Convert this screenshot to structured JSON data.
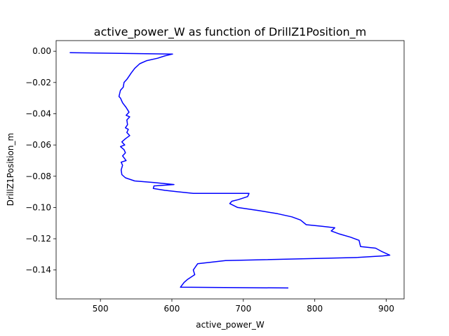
{
  "chart_data": {
    "type": "line",
    "title": "active_power_W as function of DrillZ1Position_m",
    "xlabel": "active_power_W",
    "ylabel": "DrillZ1Position_m",
    "xlim": [
      438,
      925
    ],
    "ylim": [
      -0.1585,
      0.0068
    ],
    "xticks": [
      500,
      600,
      700,
      800,
      900
    ],
    "xtick_labels": [
      "500",
      "600",
      "700",
      "800",
      "900"
    ],
    "yticks": [
      0.0,
      -0.02,
      -0.04,
      -0.06,
      -0.08,
      -0.1,
      -0.12,
      -0.14
    ],
    "ytick_labels": [
      "0.00",
      "−0.02",
      "−0.04",
      "−0.06",
      "−0.08",
      "−0.10",
      "−0.12",
      "−0.14"
    ],
    "grid": false,
    "series": [
      {
        "color": "#0000ff",
        "points": [
          [
            457,
            -0.0009
          ],
          [
            601,
            -0.0018
          ],
          [
            590,
            -0.003
          ],
          [
            580,
            -0.0045
          ],
          [
            565,
            -0.006
          ],
          [
            555,
            -0.008
          ],
          [
            548,
            -0.011
          ],
          [
            543,
            -0.014
          ],
          [
            540,
            -0.016
          ],
          [
            537,
            -0.018
          ],
          [
            533,
            -0.02
          ],
          [
            532,
            -0.023
          ],
          [
            528,
            -0.025
          ],
          [
            527,
            -0.027
          ],
          [
            526,
            -0.029
          ],
          [
            528,
            -0.03
          ],
          [
            531,
            -0.033
          ],
          [
            536,
            -0.036
          ],
          [
            540,
            -0.039
          ],
          [
            536,
            -0.041
          ],
          [
            541,
            -0.042
          ],
          [
            537,
            -0.044
          ],
          [
            538,
            -0.047
          ],
          [
            535,
            -0.049
          ],
          [
            539,
            -0.05
          ],
          [
            537,
            -0.052
          ],
          [
            541,
            -0.054
          ],
          [
            535,
            -0.056
          ],
          [
            530,
            -0.058
          ],
          [
            534,
            -0.06
          ],
          [
            528,
            -0.061
          ],
          [
            533,
            -0.063
          ],
          [
            535,
            -0.065
          ],
          [
            531,
            -0.067
          ],
          [
            536,
            -0.07
          ],
          [
            529,
            -0.071
          ],
          [
            531,
            -0.073
          ],
          [
            529,
            -0.076
          ],
          [
            530,
            -0.079
          ],
          [
            535,
            -0.081
          ],
          [
            548,
            -0.083
          ],
          [
            575,
            -0.084
          ],
          [
            603,
            -0.0853
          ],
          [
            575,
            -0.0862
          ],
          [
            574,
            -0.0878
          ],
          [
            590,
            -0.089
          ],
          [
            630,
            -0.091
          ],
          [
            708,
            -0.091
          ],
          [
            706,
            -0.093
          ],
          [
            693,
            -0.095
          ],
          [
            684,
            -0.096
          ],
          [
            681,
            -0.0975
          ],
          [
            692,
            -0.1
          ],
          [
            722,
            -0.102
          ],
          [
            748,
            -0.104
          ],
          [
            768,
            -0.106
          ],
          [
            780,
            -0.108
          ],
          [
            788,
            -0.111
          ],
          [
            810,
            -0.112
          ],
          [
            828,
            -0.113
          ],
          [
            823,
            -0.115
          ],
          [
            835,
            -0.117
          ],
          [
            850,
            -0.119
          ],
          [
            862,
            -0.121
          ],
          [
            864,
            -0.125
          ],
          [
            885,
            -0.126
          ],
          [
            893,
            -0.128
          ],
          [
            905,
            -0.1305
          ],
          [
            895,
            -0.131
          ],
          [
            860,
            -0.132
          ],
          [
            675,
            -0.134
          ],
          [
            636,
            -0.136
          ],
          [
            630,
            -0.14
          ],
          [
            632,
            -0.143
          ],
          [
            622,
            -0.146
          ],
          [
            617,
            -0.148
          ],
          [
            612,
            -0.151
          ],
          [
            763,
            -0.1515
          ]
        ]
      }
    ]
  }
}
